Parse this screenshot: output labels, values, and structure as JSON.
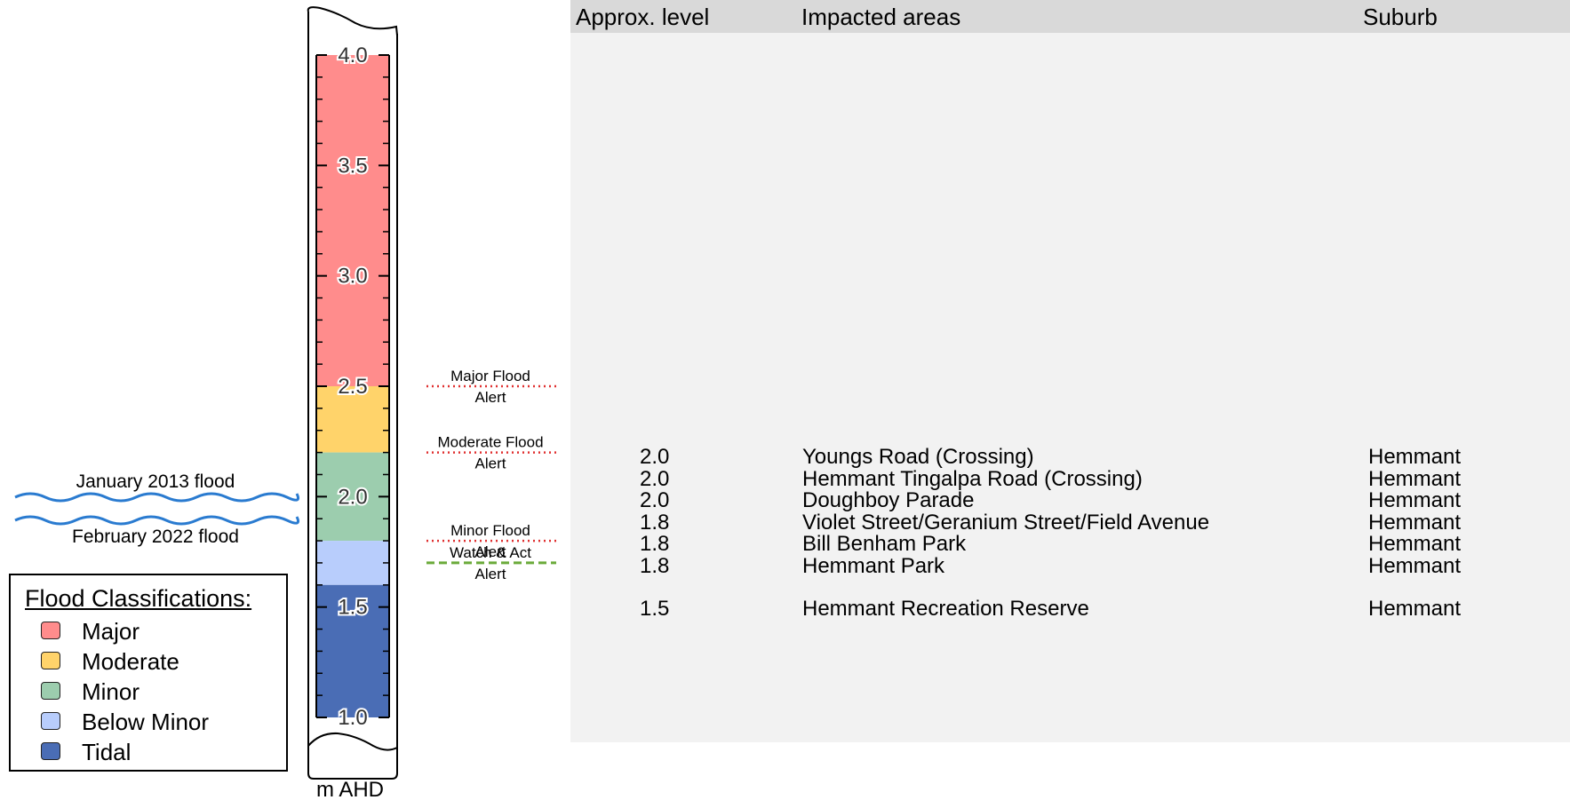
{
  "gauge": {
    "unit_label": "m AHD",
    "range": [
      1.0,
      4.0
    ],
    "tick_labels": [
      "4.0",
      "3.5",
      "3.0",
      "2.5",
      "2.0",
      "1.5",
      "1.0"
    ],
    "tick_values": [
      4.0,
      3.5,
      3.0,
      2.5,
      2.0,
      1.5,
      1.0
    ],
    "bands": [
      {
        "name": "Major",
        "from": 2.5,
        "to": 4.0,
        "color": "#ff8c8c"
      },
      {
        "name": "Moderate",
        "from": 2.2,
        "to": 2.5,
        "color": "#ffd36a"
      },
      {
        "name": "Minor",
        "from": 1.8,
        "to": 2.2,
        "color": "#9ccdae"
      },
      {
        "name": "Below Minor",
        "from": 1.6,
        "to": 1.8,
        "color": "#b8cdfc"
      },
      {
        "name": "Tidal",
        "from": 1.0,
        "to": 1.6,
        "color": "#4a6db5"
      }
    ],
    "alerts": [
      {
        "line1": "Major Flood",
        "line2": "Alert",
        "level": 2.5,
        "color": "#e03030",
        "style": "dotted"
      },
      {
        "line1": "Moderate Flood",
        "line2": "Alert",
        "level": 2.2,
        "color": "#e03030",
        "style": "dotted"
      },
      {
        "line1": "Minor Flood",
        "line2": "Alert",
        "level": 1.8,
        "color": "#e03030",
        "style": "dotted"
      },
      {
        "line1": "Watch & Act",
        "line2": "Alert",
        "level": 1.7,
        "color": "#6aaa3a",
        "style": "dashed"
      }
    ],
    "historic": [
      {
        "label": "January 2013 flood"
      },
      {
        "label": "February 2022 flood"
      }
    ]
  },
  "legend": {
    "title": "Flood Classifications:",
    "items": [
      {
        "label": "Major",
        "color": "#ff8c8c"
      },
      {
        "label": "Moderate",
        "color": "#ffd36a"
      },
      {
        "label": "Minor",
        "color": "#9ccdae"
      },
      {
        "label": "Below Minor",
        "color": "#b8cdfc"
      },
      {
        "label": "Tidal",
        "color": "#4a6db5"
      }
    ]
  },
  "table": {
    "headers": {
      "level": "Approx. level",
      "area": "Impacted areas",
      "suburb": "Suburb"
    },
    "rows": [
      {
        "level": "2.0",
        "area": "Youngs Road (Crossing)",
        "suburb": "Hemmant"
      },
      {
        "level": "2.0",
        "area": "Hemmant Tingalpa Road (Crossing)",
        "suburb": "Hemmant"
      },
      {
        "level": "2.0",
        "area": "Doughboy Parade",
        "suburb": "Hemmant"
      },
      {
        "level": "1.8",
        "area": "Violet Street/Geranium Street/Field Avenue",
        "suburb": "Hemmant"
      },
      {
        "level": "1.8",
        "area": "Bill Benham Park",
        "suburb": "Hemmant"
      },
      {
        "level": "1.8",
        "area": "Hemmant Park",
        "suburb": "Hemmant"
      },
      {
        "level": "1.5",
        "area": "Hemmant Recreation Reserve",
        "suburb": "Hemmant"
      }
    ]
  }
}
